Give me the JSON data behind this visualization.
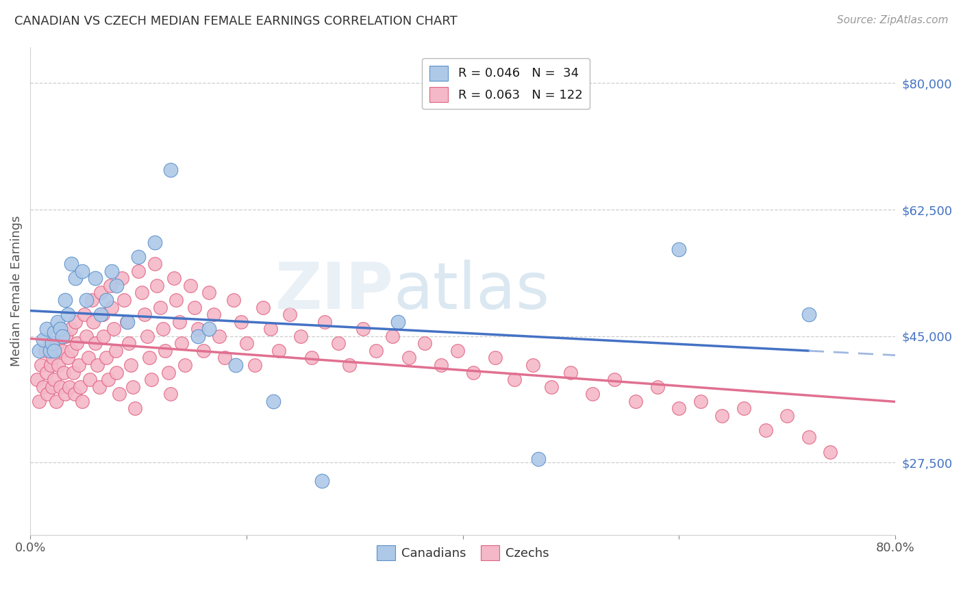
{
  "title": "CANADIAN VS CZECH MEDIAN FEMALE EARNINGS CORRELATION CHART",
  "source": "Source: ZipAtlas.com",
  "ylabel": "Median Female Earnings",
  "watermark": "ZIPatlas",
  "xlim": [
    0.0,
    0.8
  ],
  "ylim": [
    17500,
    85000
  ],
  "yticks": [
    27500,
    45000,
    62500,
    80000
  ],
  "ytick_labels": [
    "$27,500",
    "$45,000",
    "$62,500",
    "$80,000"
  ],
  "xticks": [
    0.0,
    0.2,
    0.4,
    0.6,
    0.8
  ],
  "xtick_labels": [
    "0.0%",
    "",
    "",
    "",
    "80.0%"
  ],
  "canadian_R": 0.046,
  "canadian_N": 34,
  "czech_R": 0.063,
  "czech_N": 122,
  "canadian_color": "#aec9e8",
  "czech_color": "#f4b8c8",
  "canadian_edge_color": "#5b8fc9",
  "czech_edge_color": "#e06080",
  "canadian_line_color": "#4472C4",
  "canadian_dash_color": "#a0b8e0",
  "czech_line_color": "#E07090",
  "background_color": "#ffffff",
  "grid_color": "#c8c8c8",
  "title_color": "#333333",
  "right_tick_color": "#4472C4",
  "can_x": [
    0.008,
    0.012,
    0.015,
    0.018,
    0.02,
    0.022,
    0.022,
    0.025,
    0.028,
    0.03,
    0.032,
    0.035,
    0.038,
    0.042,
    0.048,
    0.052,
    0.06,
    0.065,
    0.07,
    0.075,
    0.08,
    0.09,
    0.1,
    0.115,
    0.13,
    0.155,
    0.165,
    0.19,
    0.225,
    0.27,
    0.34,
    0.47,
    0.6,
    0.72
  ],
  "can_y": [
    43000,
    44500,
    46000,
    43000,
    44000,
    45500,
    43000,
    47000,
    46000,
    45000,
    50000,
    48000,
    55000,
    53000,
    54000,
    50000,
    53000,
    48000,
    50000,
    54000,
    52000,
    47000,
    56000,
    58000,
    68000,
    45000,
    46000,
    41000,
    36000,
    25000,
    47000,
    28000,
    57000,
    48000
  ],
  "cz_x": [
    0.006,
    0.008,
    0.01,
    0.012,
    0.014,
    0.015,
    0.016,
    0.018,
    0.019,
    0.02,
    0.021,
    0.022,
    0.024,
    0.025,
    0.026,
    0.028,
    0.03,
    0.031,
    0.032,
    0.033,
    0.035,
    0.036,
    0.037,
    0.038,
    0.04,
    0.041,
    0.042,
    0.043,
    0.045,
    0.046,
    0.048,
    0.05,
    0.052,
    0.054,
    0.055,
    0.057,
    0.058,
    0.06,
    0.062,
    0.064,
    0.065,
    0.067,
    0.068,
    0.07,
    0.072,
    0.074,
    0.075,
    0.077,
    0.079,
    0.08,
    0.082,
    0.085,
    0.087,
    0.089,
    0.091,
    0.093,
    0.095,
    0.097,
    0.1,
    0.103,
    0.106,
    0.108,
    0.11,
    0.112,
    0.115,
    0.117,
    0.12,
    0.123,
    0.125,
    0.128,
    0.13,
    0.133,
    0.135,
    0.138,
    0.14,
    0.143,
    0.148,
    0.152,
    0.155,
    0.16,
    0.165,
    0.17,
    0.175,
    0.18,
    0.188,
    0.195,
    0.2,
    0.208,
    0.215,
    0.222,
    0.23,
    0.24,
    0.25,
    0.26,
    0.272,
    0.285,
    0.295,
    0.308,
    0.32,
    0.335,
    0.35,
    0.365,
    0.38,
    0.395,
    0.41,
    0.43,
    0.448,
    0.465,
    0.482,
    0.5,
    0.52,
    0.54,
    0.56,
    0.58,
    0.6,
    0.62,
    0.64,
    0.66,
    0.68,
    0.7,
    0.72,
    0.74
  ],
  "cz_y": [
    39000,
    36000,
    41000,
    38000,
    43000,
    40000,
    37000,
    44000,
    41000,
    38000,
    42000,
    39000,
    36000,
    44000,
    41000,
    38000,
    43000,
    40000,
    37000,
    45000,
    42000,
    38000,
    46000,
    43000,
    40000,
    37000,
    47000,
    44000,
    41000,
    38000,
    36000,
    48000,
    45000,
    42000,
    39000,
    50000,
    47000,
    44000,
    41000,
    38000,
    51000,
    48000,
    45000,
    42000,
    39000,
    52000,
    49000,
    46000,
    43000,
    40000,
    37000,
    53000,
    50000,
    47000,
    44000,
    41000,
    38000,
    35000,
    54000,
    51000,
    48000,
    45000,
    42000,
    39000,
    55000,
    52000,
    49000,
    46000,
    43000,
    40000,
    37000,
    53000,
    50000,
    47000,
    44000,
    41000,
    52000,
    49000,
    46000,
    43000,
    51000,
    48000,
    45000,
    42000,
    50000,
    47000,
    44000,
    41000,
    49000,
    46000,
    43000,
    48000,
    45000,
    42000,
    47000,
    44000,
    41000,
    46000,
    43000,
    45000,
    42000,
    44000,
    41000,
    43000,
    40000,
    42000,
    39000,
    41000,
    38000,
    40000,
    37000,
    39000,
    36000,
    38000,
    35000,
    36000,
    34000,
    35000,
    32000,
    34000,
    31000,
    29000
  ]
}
